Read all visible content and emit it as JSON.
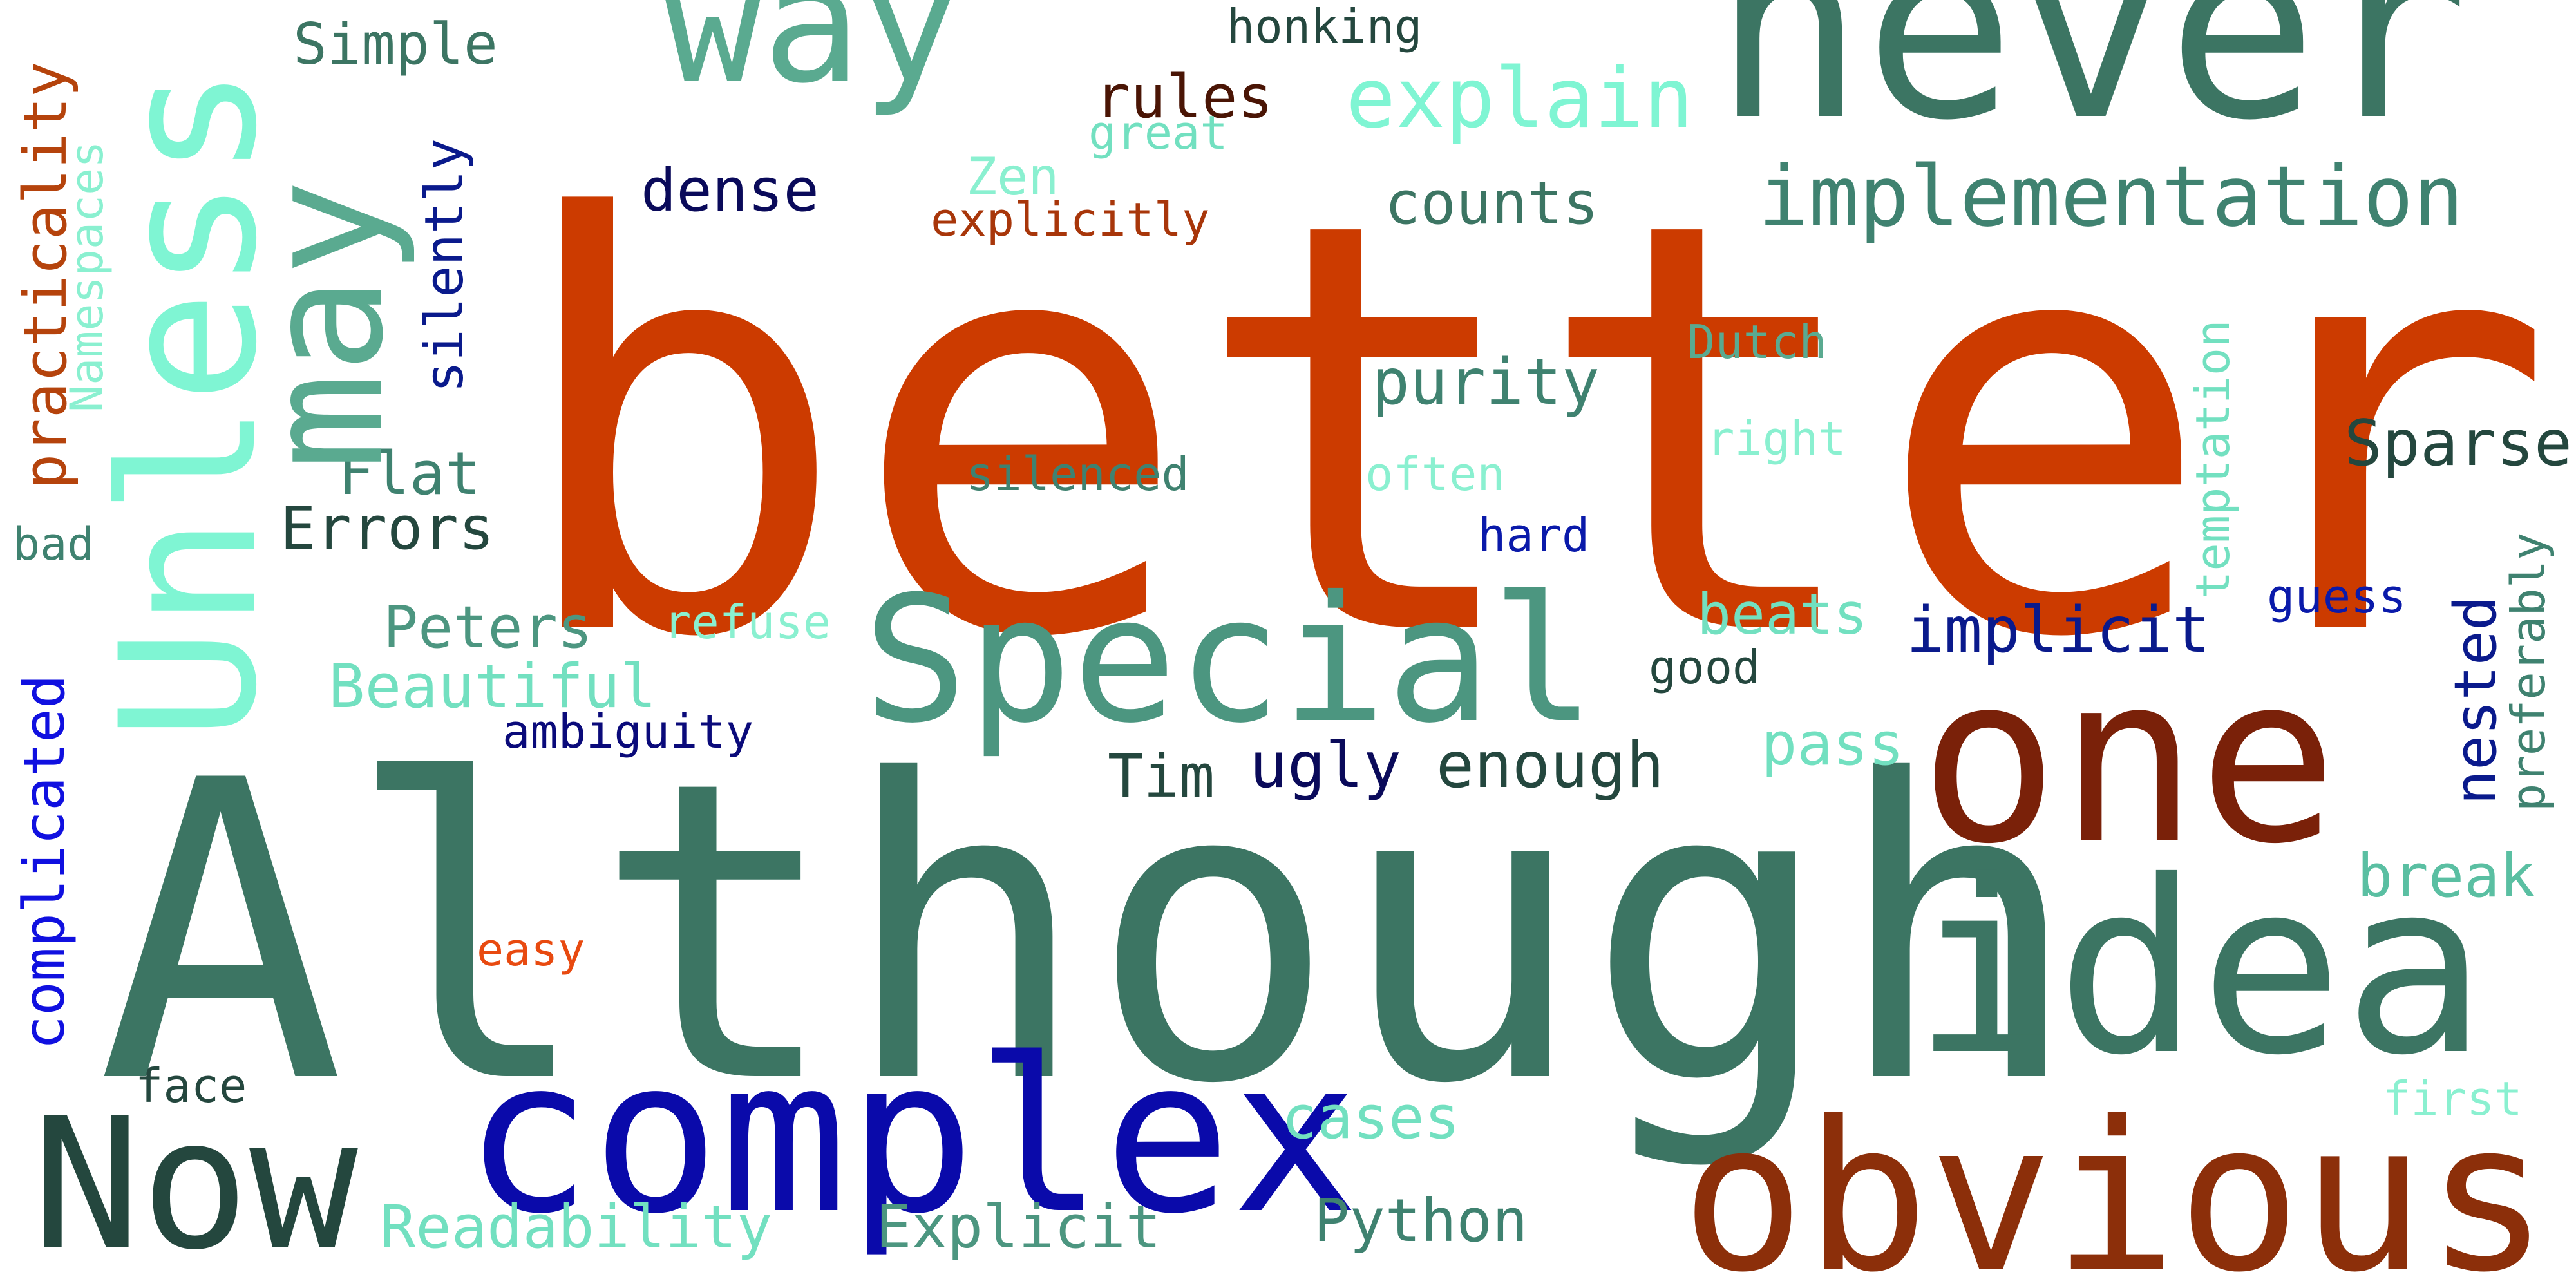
{
  "words": {
    "better": {
      "text": "better",
      "color": "#CC3B00"
    },
    "although": {
      "text": "Although",
      "color": "#3C7563"
    },
    "never": {
      "text": "never",
      "color": "#3C7563"
    },
    "one": {
      "text": "one",
      "color": "#7A2109"
    },
    "idea": {
      "text": "idea",
      "color": "#3C7563"
    },
    "obvious": {
      "text": "obvious",
      "color": "#8C2F0A"
    },
    "complex": {
      "text": "complex",
      "color": "#0A0AAA"
    },
    "now": {
      "text": "Now",
      "color": "#24473E"
    },
    "special": {
      "text": "Special",
      "color": "#4C9680"
    },
    "way": {
      "text": "way",
      "color": "#5AAA90"
    },
    "unless": {
      "text": "Unless",
      "color": "#7FF5D3"
    },
    "may": {
      "text": "may",
      "color": "#5AAA90"
    },
    "implementation": {
      "text": "implementation",
      "color": "#3F8270"
    },
    "explain": {
      "text": "explain",
      "color": "#7FF5D3"
    },
    "sparse": {
      "text": "Sparse",
      "color": "#24473E"
    },
    "implicit": {
      "text": "implicit",
      "color": "#0A1A8C"
    },
    "enough": {
      "text": "enough",
      "color": "#24473E"
    },
    "ugly": {
      "text": "ugly",
      "color": "#0A0A5A"
    },
    "tim": {
      "text": "Tim",
      "color": "#24473E"
    },
    "counts": {
      "text": "counts",
      "color": "#3C7563"
    },
    "purity": {
      "text": "purity",
      "color": "#3F8270"
    },
    "dense": {
      "text": "dense",
      "color": "#0A0A5A"
    },
    "rules": {
      "text": "rules",
      "color": "#4A1505"
    },
    "simple": {
      "text": "Simple",
      "color": "#3C7563"
    },
    "flat": {
      "text": "Flat",
      "color": "#3F8270"
    },
    "errors": {
      "text": "Errors",
      "color": "#24473E"
    },
    "peters": {
      "text": "Peters",
      "color": "#4C9680"
    },
    "beautiful": {
      "text": "Beautiful",
      "color": "#72E0C0"
    },
    "pass": {
      "text": "pass",
      "color": "#72E0C0"
    },
    "beats": {
      "text": "beats",
      "color": "#72E0C0"
    },
    "break": {
      "text": "break",
      "color": "#5ABFA2"
    },
    "cases": {
      "text": "cases",
      "color": "#72E0C0"
    },
    "readability": {
      "text": "Readability",
      "color": "#72E0C0"
    },
    "explicit": {
      "text": "Explicit",
      "color": "#4C9680"
    },
    "python": {
      "text": "Python",
      "color": "#3F8270"
    },
    "face": {
      "text": "face",
      "color": "#24473E"
    },
    "easy": {
      "text": "easy",
      "color": "#E84A10"
    },
    "ambiguity": {
      "text": "ambiguity",
      "color": "#0A0A7A"
    },
    "refuse": {
      "text": "refuse",
      "color": "#8AF0D0"
    },
    "good": {
      "text": "good",
      "color": "#24473E"
    },
    "guess": {
      "text": "guess",
      "color": "#0A1AAA"
    },
    "hard": {
      "text": "hard",
      "color": "#0A1AAA"
    },
    "often": {
      "text": "often",
      "color": "#8AF0D0"
    },
    "silenced": {
      "text": "silenced",
      "color": "#3F8270"
    },
    "right": {
      "text": "right",
      "color": "#8AF0D0"
    },
    "dutch": {
      "text": "Dutch",
      "color": "#5AAA90"
    },
    "honking": {
      "text": "honking",
      "color": "#24473E"
    },
    "great": {
      "text": "great",
      "color": "#72E0C0"
    },
    "zen": {
      "text": "Zen",
      "color": "#8AF0D0"
    },
    "explicitly": {
      "text": "explicitly",
      "color": "#A8360A"
    },
    "bad": {
      "text": "bad",
      "color": "#3F8270"
    },
    "first": {
      "text": "first",
      "color": "#8AF0D0"
    },
    "practicality": {
      "text": "practicality",
      "color": "#B5430C"
    },
    "namespaces": {
      "text": "Namespaces",
      "color": "#8AF0D0"
    },
    "silently": {
      "text": "silently",
      "color": "#0A1A8C"
    },
    "complicated": {
      "text": "complicated",
      "color": "#1010E0"
    },
    "temptation": {
      "text": "temptation",
      "color": "#72E0C0"
    },
    "nested": {
      "text": "nested",
      "color": "#0A1A8C"
    },
    "preferably": {
      "text": "preferably",
      "color": "#3F8270"
    }
  }
}
